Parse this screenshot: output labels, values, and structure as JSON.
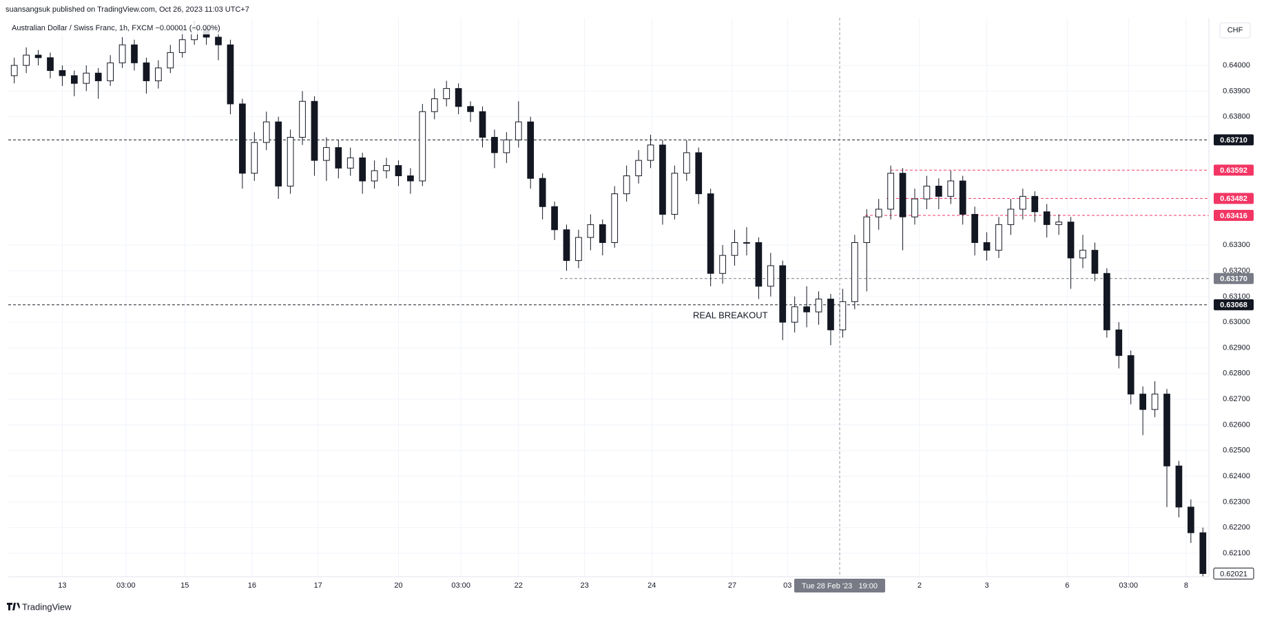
{
  "header": "suansangsuk published on TradingView.com, Oct 26, 2023 11:03 UTC+7",
  "footer": "TradingView",
  "chart_data": {
    "type": "candlestick",
    "legend_text": "Australian Dollar / Swiss Franc, 1h, FXCM  −0.00001 (−0.00%)",
    "currency": "CHF",
    "annotation": "REAL BREAKOUT",
    "crosshair_label": "Tue 28 Feb '23   19:00",
    "up_color": "#ffffff",
    "down_color": "#131722",
    "wick_color": "#131722",
    "grid": true,
    "xlim": [
      -0.5,
      99.5
    ],
    "ylim": [
      0.62009,
      0.64185
    ],
    "xticks": [
      {
        "value": 4.0,
        "label": "13"
      },
      {
        "value": 9.3,
        "label": "03:00"
      },
      {
        "value": 14.2,
        "label": "15"
      },
      {
        "value": 19.8,
        "label": "16"
      },
      {
        "value": 25.3,
        "label": "17"
      },
      {
        "value": 32.0,
        "label": "20"
      },
      {
        "value": 37.2,
        "label": "03:00"
      },
      {
        "value": 42.0,
        "label": "22"
      },
      {
        "value": 47.5,
        "label": "23"
      },
      {
        "value": 53.1,
        "label": "24"
      },
      {
        "value": 59.8,
        "label": "27"
      },
      {
        "value": 64.4,
        "label": "03"
      },
      {
        "value": 75.4,
        "label": "2"
      },
      {
        "value": 81.0,
        "label": "3"
      },
      {
        "value": 87.7,
        "label": "6"
      },
      {
        "value": 92.8,
        "label": "03:00"
      },
      {
        "value": 97.6,
        "label": "8"
      }
    ],
    "yticks": [
      {
        "value": 0.64,
        "label": "0.64000"
      },
      {
        "value": 0.639,
        "label": "0.63900"
      },
      {
        "value": 0.638,
        "label": "0.63800"
      },
      {
        "value": 0.633,
        "label": "0.63300"
      },
      {
        "value": 0.632,
        "label": "0.63200"
      },
      {
        "value": 0.631,
        "label": "0.63100"
      },
      {
        "value": 0.63,
        "label": "0.63000"
      },
      {
        "value": 0.629,
        "label": "0.62900"
      },
      {
        "value": 0.628,
        "label": "0.62800"
      },
      {
        "value": 0.627,
        "label": "0.62700"
      },
      {
        "value": 0.626,
        "label": "0.62600"
      },
      {
        "value": 0.625,
        "label": "0.62500"
      },
      {
        "value": 0.624,
        "label": "0.62400"
      },
      {
        "value": 0.623,
        "label": "0.62300"
      },
      {
        "value": 0.622,
        "label": "0.62200"
      },
      {
        "value": 0.621,
        "label": "0.62100"
      }
    ],
    "levels": [
      {
        "value": 0.6371,
        "label": "0.63710",
        "color": "#131722"
      },
      {
        "value": 0.63592,
        "label": "0.63592",
        "color": "#f23664"
      },
      {
        "value": 0.63482,
        "label": "0.63482",
        "color": "#f23664"
      },
      {
        "value": 0.63416,
        "label": "0.63416",
        "color": "#f23664"
      },
      {
        "value": 0.6317,
        "label": "0.63170",
        "color": "#787b86"
      },
      {
        "value": 0.63068,
        "label": "0.63068",
        "color": "#131722"
      }
    ],
    "last_price": {
      "value": 0.62021,
      "label": "0.62021"
    },
    "open": [
      0.6396,
      0.64,
      0.6404,
      0.6403,
      0.6398,
      0.6396,
      0.6393,
      0.6397,
      0.6394,
      0.6401,
      0.6408,
      0.6401,
      0.6394,
      0.6399,
      0.6405,
      0.641,
      0.6414,
      0.6411,
      0.6408,
      0.6385,
      0.6358,
      0.637,
      0.6378,
      0.6353,
      0.6372,
      0.6386,
      0.6363,
      0.6368,
      0.636,
      0.6364,
      0.6355,
      0.6359,
      0.6361,
      0.6357,
      0.6355,
      0.6382,
      0.6387,
      0.6391,
      0.6384,
      0.6382,
      0.6372,
      0.6366,
      0.6371,
      0.6378,
      0.6356,
      0.6345,
      0.6336,
      0.6324,
      0.6333,
      0.6338,
      0.6331,
      0.635,
      0.6357,
      0.6363,
      0.6369,
      0.6342,
      0.6358,
      0.6366,
      0.635,
      0.6319,
      0.6326,
      0.6331,
      0.6331,
      0.6314,
      0.6322,
      0.63,
      0.6306,
      0.6304,
      0.6309,
      0.6297,
      0.6308,
      0.6331,
      0.6341,
      0.6344,
      0.6358,
      0.6341,
      0.6348,
      0.6353,
      0.6349,
      0.6355,
      0.6342,
      0.6331,
      0.6328,
      0.6338,
      0.6344,
      0.6349,
      0.6343,
      0.6338,
      0.6339,
      0.6325,
      0.6328,
      0.6319,
      0.6297,
      0.6287,
      0.6272,
      0.6266,
      0.6272,
      0.6244,
      0.6228,
      0.6218
    ],
    "high": [
      0.6403,
      0.6407,
      0.6406,
      0.6405,
      0.64,
      0.6398,
      0.64,
      0.6399,
      0.6404,
      0.6411,
      0.641,
      0.6403,
      0.6402,
      0.6408,
      0.6414,
      0.6417,
      0.6416,
      0.6413,
      0.641,
      0.6387,
      0.6374,
      0.6382,
      0.638,
      0.6375,
      0.639,
      0.6388,
      0.6372,
      0.6371,
      0.6368,
      0.6366,
      0.6363,
      0.6364,
      0.6363,
      0.636,
      0.6385,
      0.6391,
      0.6394,
      0.6393,
      0.6386,
      0.6384,
      0.6375,
      0.6374,
      0.6386,
      0.638,
      0.6358,
      0.6347,
      0.6338,
      0.6336,
      0.6342,
      0.634,
      0.6353,
      0.6361,
      0.6367,
      0.6373,
      0.6371,
      0.6361,
      0.6371,
      0.6368,
      0.6352,
      0.633,
      0.6336,
      0.6337,
      0.6333,
      0.6327,
      0.6324,
      0.631,
      0.6314,
      0.6312,
      0.6311,
      0.6313,
      0.6334,
      0.6344,
      0.6348,
      0.6361,
      0.636,
      0.6352,
      0.6357,
      0.6356,
      0.6359,
      0.6357,
      0.6345,
      0.6335,
      0.6341,
      0.6348,
      0.6352,
      0.6351,
      0.6346,
      0.6342,
      0.6341,
      0.6334,
      0.6331,
      0.6321,
      0.63,
      0.6289,
      0.6275,
      0.6277,
      0.6274,
      0.6246,
      0.6231,
      0.622
    ],
    "low": [
      0.6393,
      0.6397,
      0.64,
      0.6395,
      0.6392,
      0.6388,
      0.639,
      0.6387,
      0.6392,
      0.6399,
      0.6398,
      0.6389,
      0.6391,
      0.6397,
      0.6403,
      0.6408,
      0.6408,
      0.6402,
      0.6381,
      0.6352,
      0.6355,
      0.6367,
      0.6348,
      0.635,
      0.6369,
      0.6357,
      0.6355,
      0.6356,
      0.6357,
      0.635,
      0.6352,
      0.6356,
      0.6353,
      0.635,
      0.6353,
      0.6379,
      0.6384,
      0.6381,
      0.6378,
      0.6368,
      0.636,
      0.6362,
      0.6368,
      0.6352,
      0.634,
      0.6332,
      0.632,
      0.6321,
      0.6328,
      0.6326,
      0.6329,
      0.6347,
      0.6354,
      0.636,
      0.6338,
      0.634,
      0.6355,
      0.6346,
      0.6314,
      0.6315,
      0.6322,
      0.6326,
      0.6309,
      0.631,
      0.6293,
      0.6296,
      0.6298,
      0.6299,
      0.6291,
      0.6294,
      0.6305,
      0.6312,
      0.6336,
      0.634,
      0.6328,
      0.6338,
      0.6344,
      0.6344,
      0.6346,
      0.6338,
      0.6326,
      0.6324,
      0.6325,
      0.6334,
      0.634,
      0.6339,
      0.6333,
      0.6334,
      0.6313,
      0.6321,
      0.6316,
      0.6294,
      0.6282,
      0.6268,
      0.6256,
      0.6263,
      0.6228,
      0.6224,
      0.6214,
      0.6201
    ],
    "close": [
      0.64,
      0.6404,
      0.6403,
      0.6398,
      0.6396,
      0.6393,
      0.6397,
      0.6394,
      0.6401,
      0.6408,
      0.6401,
      0.6394,
      0.6399,
      0.6405,
      0.641,
      0.6414,
      0.6411,
      0.6408,
      0.6385,
      0.6358,
      0.637,
      0.6378,
      0.6353,
      0.6372,
      0.6386,
      0.6363,
      0.6368,
      0.636,
      0.6364,
      0.6355,
      0.6359,
      0.6361,
      0.6357,
      0.6355,
      0.6382,
      0.6387,
      0.6391,
      0.6384,
      0.6382,
      0.6372,
      0.6366,
      0.6371,
      0.6378,
      0.6356,
      0.6345,
      0.6336,
      0.6324,
      0.6333,
      0.6338,
      0.6331,
      0.635,
      0.6357,
      0.6363,
      0.6369,
      0.6342,
      0.6358,
      0.6366,
      0.635,
      0.6319,
      0.6326,
      0.6331,
      0.6331,
      0.6314,
      0.6322,
      0.63,
      0.6306,
      0.6304,
      0.6309,
      0.6297,
      0.6308,
      0.6331,
      0.6341,
      0.6344,
      0.6358,
      0.6341,
      0.6348,
      0.6353,
      0.6349,
      0.6355,
      0.6342,
      0.6331,
      0.6328,
      0.6338,
      0.6344,
      0.6349,
      0.6343,
      0.6338,
      0.6339,
      0.6325,
      0.6328,
      0.6319,
      0.6297,
      0.6287,
      0.6272,
      0.6266,
      0.6272,
      0.6244,
      0.6228,
      0.6218,
      0.62021
    ]
  }
}
